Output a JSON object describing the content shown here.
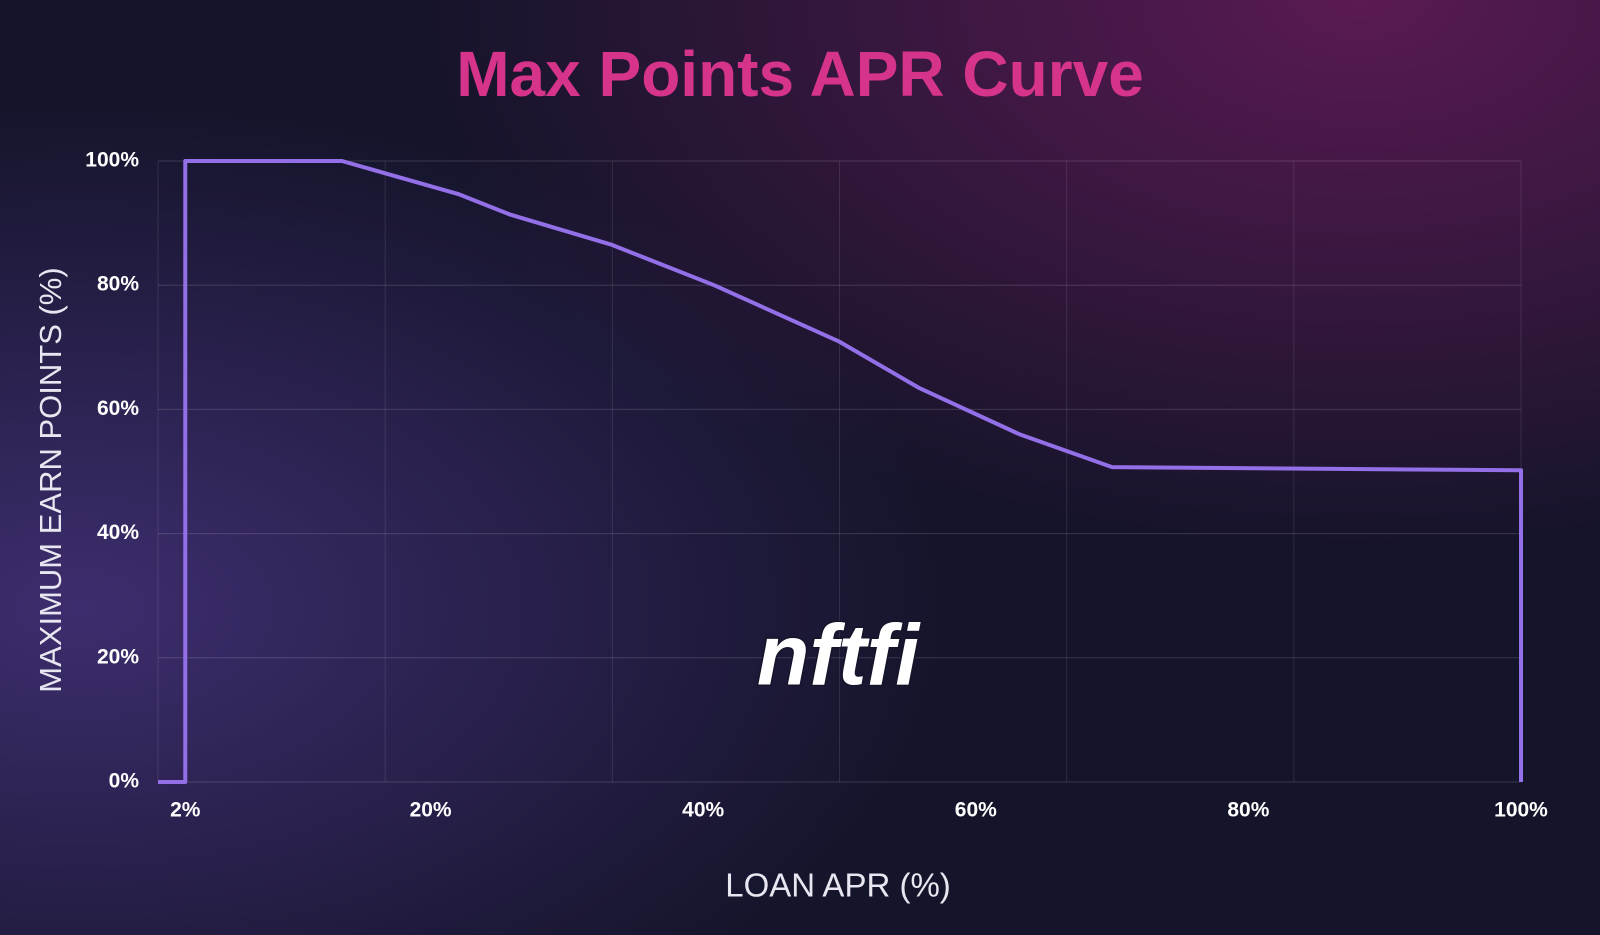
{
  "chart_data": {
    "type": "line",
    "title": "Max Points APR Curve",
    "x_label": "LOAN APR (%)",
    "y_label": "MAXIMUM EARN POINTS (%)",
    "logo": "nftfi",
    "x": [
      0,
      2,
      2,
      13.5,
      16.7,
      22,
      25.8,
      33.3,
      40.8,
      50,
      55.8,
      63.2,
      67.7,
      70,
      100,
      100
    ],
    "series": [
      {
        "color": "#9370e8",
        "values": [
          0,
          0,
          100,
          100,
          98,
          94.7,
          91.4,
          86.5,
          80,
          70.9,
          63.5,
          56,
          52.5,
          50.7,
          50.2,
          0
        ]
      }
    ],
    "xlim": [
      0,
      100
    ],
    "xticks": [
      {
        "value": 2,
        "label": "2%"
      },
      {
        "value": 20,
        "label": "20%"
      },
      {
        "value": 40,
        "label": "40%"
      },
      {
        "value": 60,
        "label": "60%"
      },
      {
        "value": 80,
        "label": "80%"
      },
      {
        "value": 100,
        "label": "100%"
      }
    ],
    "ylim": [
      0,
      100
    ],
    "yticks": [
      {
        "value": 0,
        "label": "0%"
      },
      {
        "value": 20,
        "label": "20%"
      },
      {
        "value": 40,
        "label": "40%"
      },
      {
        "value": 60,
        "label": "60%"
      },
      {
        "value": 80,
        "label": "80%"
      },
      {
        "value": 100,
        "label": "100%"
      }
    ],
    "grid": true
  }
}
